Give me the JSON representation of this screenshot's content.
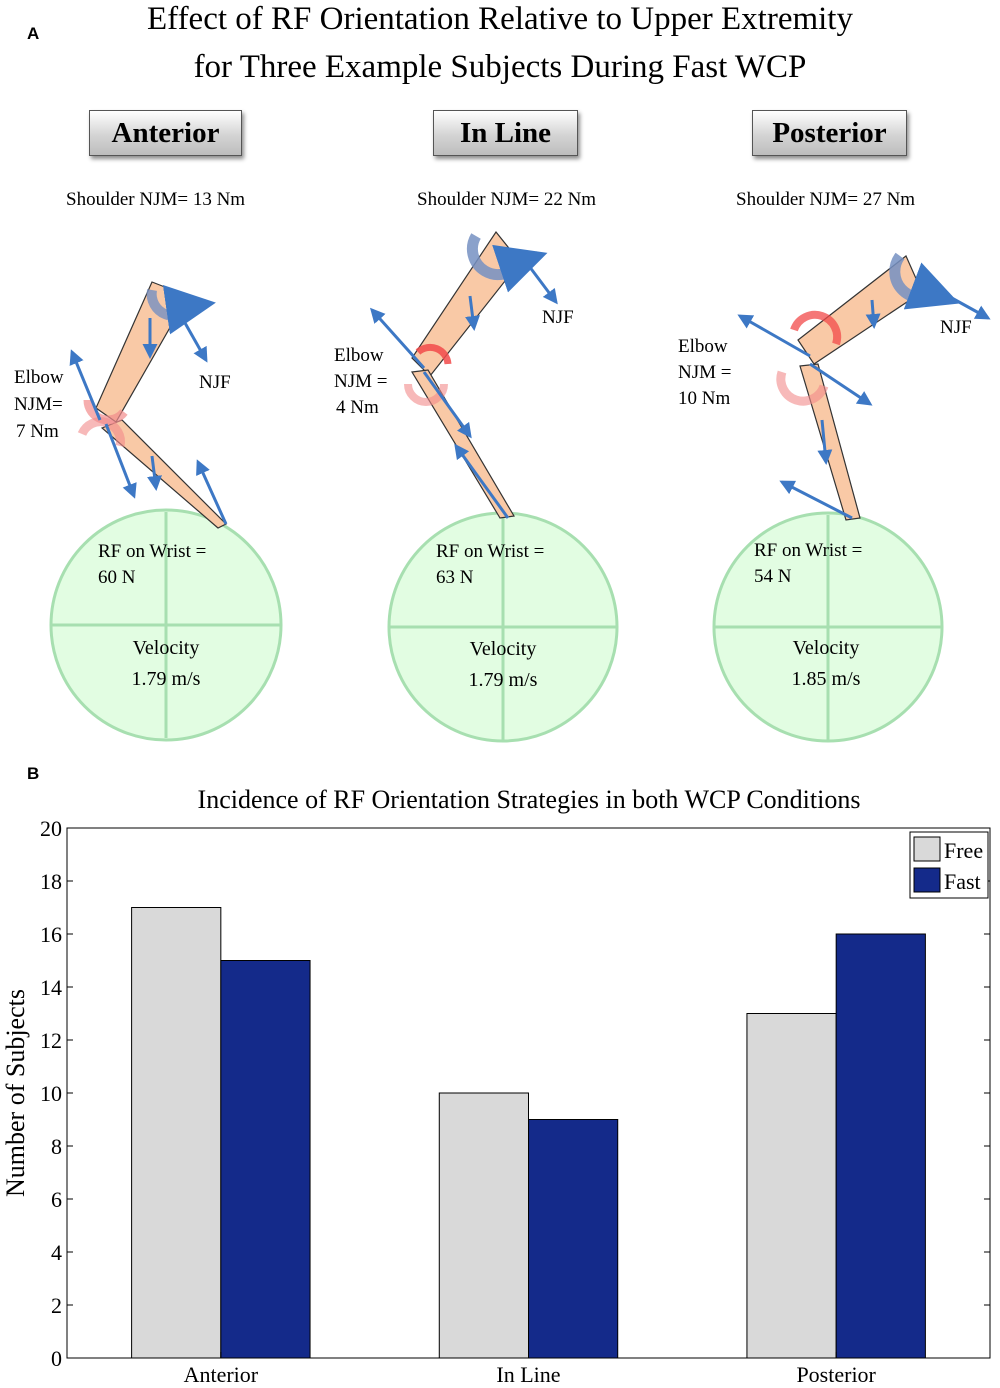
{
  "panel_a": {
    "letter": "A",
    "title_line1": "Effect of RF Orientation Relative to Upper Extremity",
    "title_line2": "for Three Example Subjects During Fast WCP",
    "subjects": [
      {
        "label": "Anterior",
        "shoulder": "Shoulder NJM= 13 Nm",
        "njf": "NJF",
        "elbow": [
          "Elbow",
          "NJM=",
          "7 Nm"
        ],
        "rf": [
          "RF on Wrist =",
          "60 N"
        ],
        "velocity": [
          "Velocity",
          "1.79 m/s"
        ]
      },
      {
        "label": "In Line",
        "shoulder": "Shoulder NJM= 22 Nm",
        "njf": "NJF",
        "elbow": [
          "Elbow",
          "NJM =",
          "4 Nm"
        ],
        "rf": [
          "RF on Wrist =",
          "63 N"
        ],
        "velocity": [
          "Velocity",
          "1.79 m/s"
        ]
      },
      {
        "label": "Posterior",
        "shoulder": "Shoulder NJM= 27 Nm",
        "njf": "NJF",
        "elbow": [
          "Elbow",
          "NJM =",
          "10 Nm"
        ],
        "rf": [
          "RF on Wrist =",
          "54 N"
        ],
        "velocity": [
          "Velocity",
          "1.85 m/s"
        ]
      }
    ]
  },
  "chart_data": {
    "letter": "B",
    "type": "bar",
    "title": "Incidence of RF Orientation Strategies in both WCP Conditions",
    "xlabel": "",
    "ylabel": "Number of Subjects",
    "categories": [
      "Anterior",
      "In Line",
      "Posterior"
    ],
    "series": [
      {
        "name": "Free",
        "values": [
          17,
          10,
          13
        ],
        "color": "#d9d9d9"
      },
      {
        "name": "Fast",
        "values": [
          15,
          9,
          16
        ],
        "color": "#142a8a"
      }
    ],
    "ylim": [
      0,
      20
    ],
    "yticks": [
      "0",
      "2",
      "4",
      "6",
      "8",
      "10",
      "12",
      "14",
      "16",
      "18",
      "20"
    ],
    "legend_position": "top-right"
  }
}
